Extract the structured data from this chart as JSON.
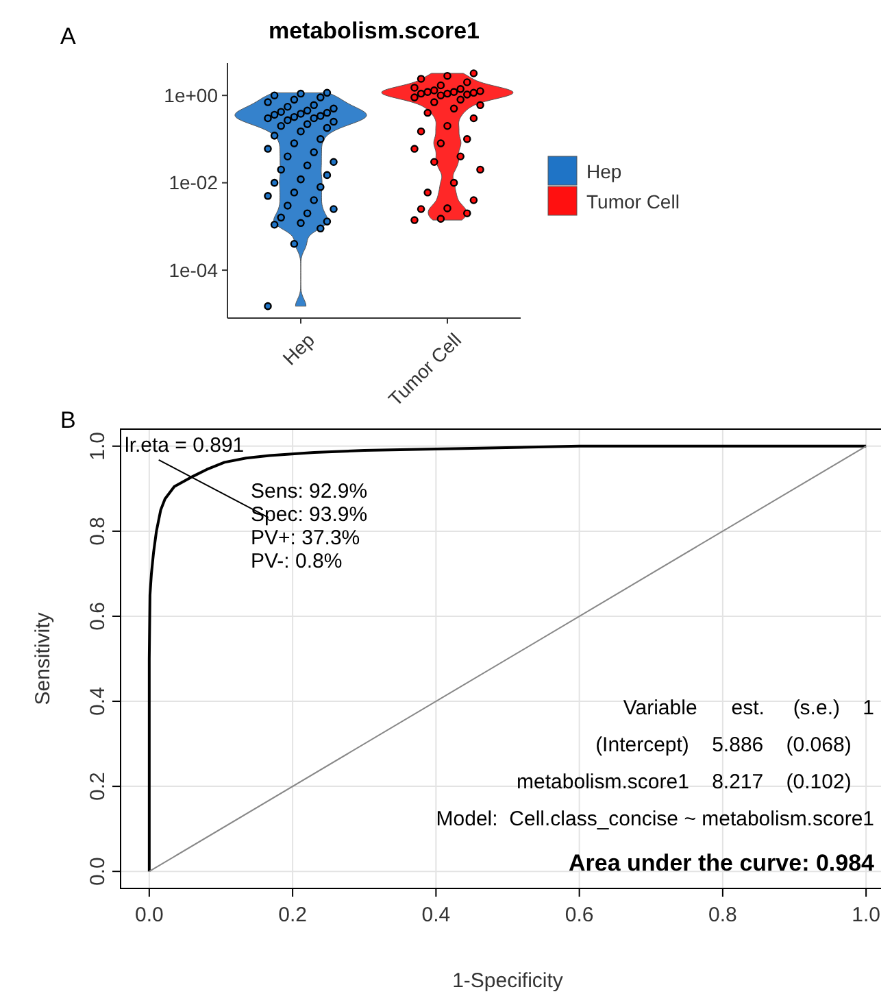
{
  "chart_data": [
    {
      "type": "scatter",
      "title": "metabolism.score1",
      "categories": [
        "Hep",
        "Tumor Cell"
      ],
      "log": true,
      "ylim": [
        8e-06,
        5.5
      ],
      "yticks": [
        {
          "value": 0.0001,
          "label": "1e-04"
        },
        {
          "value": 0.01,
          "label": "1e-02"
        },
        {
          "value": 1,
          "label": "1e+00"
        }
      ],
      "legend": "right",
      "annotations": [
        "A"
      ],
      "series": [
        {
          "name": "Hep",
          "color": "#1f74c6",
          "x": [
            "Hep",
            "Hep",
            "Hep",
            "Hep",
            "Hep",
            "Hep",
            "Hep",
            "Hep",
            "Hep",
            "Hep",
            "Hep",
            "Hep",
            "Hep",
            "Hep",
            "Hep",
            "Hep",
            "Hep",
            "Hep",
            "Hep",
            "Hep",
            "Hep",
            "Hep",
            "Hep",
            "Hep",
            "Hep",
            "Hep",
            "Hep",
            "Hep",
            "Hep",
            "Hep",
            "Hep",
            "Hep",
            "Hep",
            "Hep",
            "Hep",
            "Hep",
            "Hep",
            "Hep",
            "Hep",
            "Hep",
            "Hep",
            "Hep",
            "Hep",
            "Hep",
            "Hep",
            "Hep",
            "Hep",
            "Hep",
            "Hep",
            "Hep"
          ],
          "values": [
            1.5e-05,
            0.0004,
            0.0009,
            0.0011,
            0.0012,
            0.0013,
            0.0016,
            0.002,
            0.0025,
            0.003,
            0.004,
            0.005,
            0.006,
            0.008,
            0.01,
            0.012,
            0.015,
            0.02,
            0.025,
            0.03,
            0.04,
            0.05,
            0.06,
            0.08,
            0.1,
            0.12,
            0.15,
            0.18,
            0.2,
            0.22,
            0.25,
            0.27,
            0.3,
            0.3,
            0.32,
            0.34,
            0.36,
            0.38,
            0.4,
            0.42,
            0.45,
            0.5,
            0.55,
            0.6,
            0.7,
            0.8,
            0.9,
            1.0,
            1.1,
            1.15
          ]
        },
        {
          "name": "Tumor Cell",
          "color": "#ff1010",
          "x": [
            "Tumor Cell",
            "Tumor Cell",
            "Tumor Cell",
            "Tumor Cell",
            "Tumor Cell",
            "Tumor Cell",
            "Tumor Cell",
            "Tumor Cell",
            "Tumor Cell",
            "Tumor Cell",
            "Tumor Cell",
            "Tumor Cell",
            "Tumor Cell",
            "Tumor Cell",
            "Tumor Cell",
            "Tumor Cell",
            "Tumor Cell",
            "Tumor Cell",
            "Tumor Cell",
            "Tumor Cell",
            "Tumor Cell",
            "Tumor Cell",
            "Tumor Cell",
            "Tumor Cell",
            "Tumor Cell",
            "Tumor Cell",
            "Tumor Cell",
            "Tumor Cell",
            "Tumor Cell",
            "Tumor Cell",
            "Tumor Cell",
            "Tumor Cell",
            "Tumor Cell",
            "Tumor Cell",
            "Tumor Cell",
            "Tumor Cell",
            "Tumor Cell",
            "Tumor Cell",
            "Tumor Cell"
          ],
          "values": [
            0.0014,
            0.0015,
            0.002,
            0.0025,
            0.0026,
            0.004,
            0.006,
            0.01,
            0.02,
            0.03,
            0.04,
            0.06,
            0.08,
            0.1,
            0.15,
            0.2,
            0.3,
            0.4,
            0.5,
            0.6,
            0.7,
            0.8,
            0.9,
            1.0,
            1.05,
            1.1,
            1.1,
            1.15,
            1.2,
            1.2,
            1.25,
            1.3,
            1.4,
            1.5,
            1.7,
            2.0,
            2.4,
            2.8,
            3.2
          ]
        }
      ]
    },
    {
      "type": "line",
      "xlabel": "1-Specificity",
      "ylabel": "Sensitivity",
      "xlim": [
        -0.04,
        1.04
      ],
      "ylim": [
        -0.04,
        1.04
      ],
      "xticks": [
        {
          "value": 0,
          "label": "0.0"
        },
        {
          "value": 0.2,
          "label": "0.2"
        },
        {
          "value": 0.4,
          "label": "0.4"
        },
        {
          "value": 0.6,
          "label": "0.6"
        },
        {
          "value": 0.8,
          "label": "0.8"
        },
        {
          "value": 1,
          "label": "1.0"
        }
      ],
      "yticks": [
        {
          "value": 0,
          "label": "0.0"
        },
        {
          "value": 0.2,
          "label": "0.2"
        },
        {
          "value": 0.4,
          "label": "0.4"
        },
        {
          "value": 0.6,
          "label": "0.6"
        },
        {
          "value": 0.8,
          "label": "0.8"
        },
        {
          "value": 1,
          "label": "1.0"
        }
      ],
      "grid": true,
      "annotations": [
        "B",
        {
          "text": "lr.eta = 0.891",
          "x": 0.061,
          "y": 0.929
        },
        "Sens: 92.9%",
        "Spec: 93.9%",
        "PV+: 37.3%",
        "PV-: 0.8%",
        "Variable      est.     (s.e.)    1",
        "(Intercept)    5.886    (0.068)    ",
        "metabolism.score1    8.217    (0.102)    ",
        "Model:  Cell.class_concise ~ metabolism.score1",
        "Area under the curve: 0.984"
      ],
      "series": [
        {
          "color": "#000000",
          "x": [
            0,
            0,
            0,
            0.001,
            0.003,
            0.006,
            0.01,
            0.016,
            0.022,
            0.035,
            0.061,
            0.08,
            0.105,
            0.135,
            0.168,
            0.23,
            0.3,
            0.45,
            0.6,
            1
          ],
          "values": [
            0,
            0.3,
            0.5,
            0.65,
            0.7,
            0.75,
            0.8,
            0.85,
            0.876,
            0.905,
            0.929,
            0.945,
            0.962,
            0.972,
            0.978,
            0.985,
            0.99,
            0.995,
            1,
            1
          ]
        },
        {
          "color": "#888888",
          "x": [
            0,
            1
          ],
          "values": [
            0,
            1
          ]
        }
      ]
    }
  ]
}
